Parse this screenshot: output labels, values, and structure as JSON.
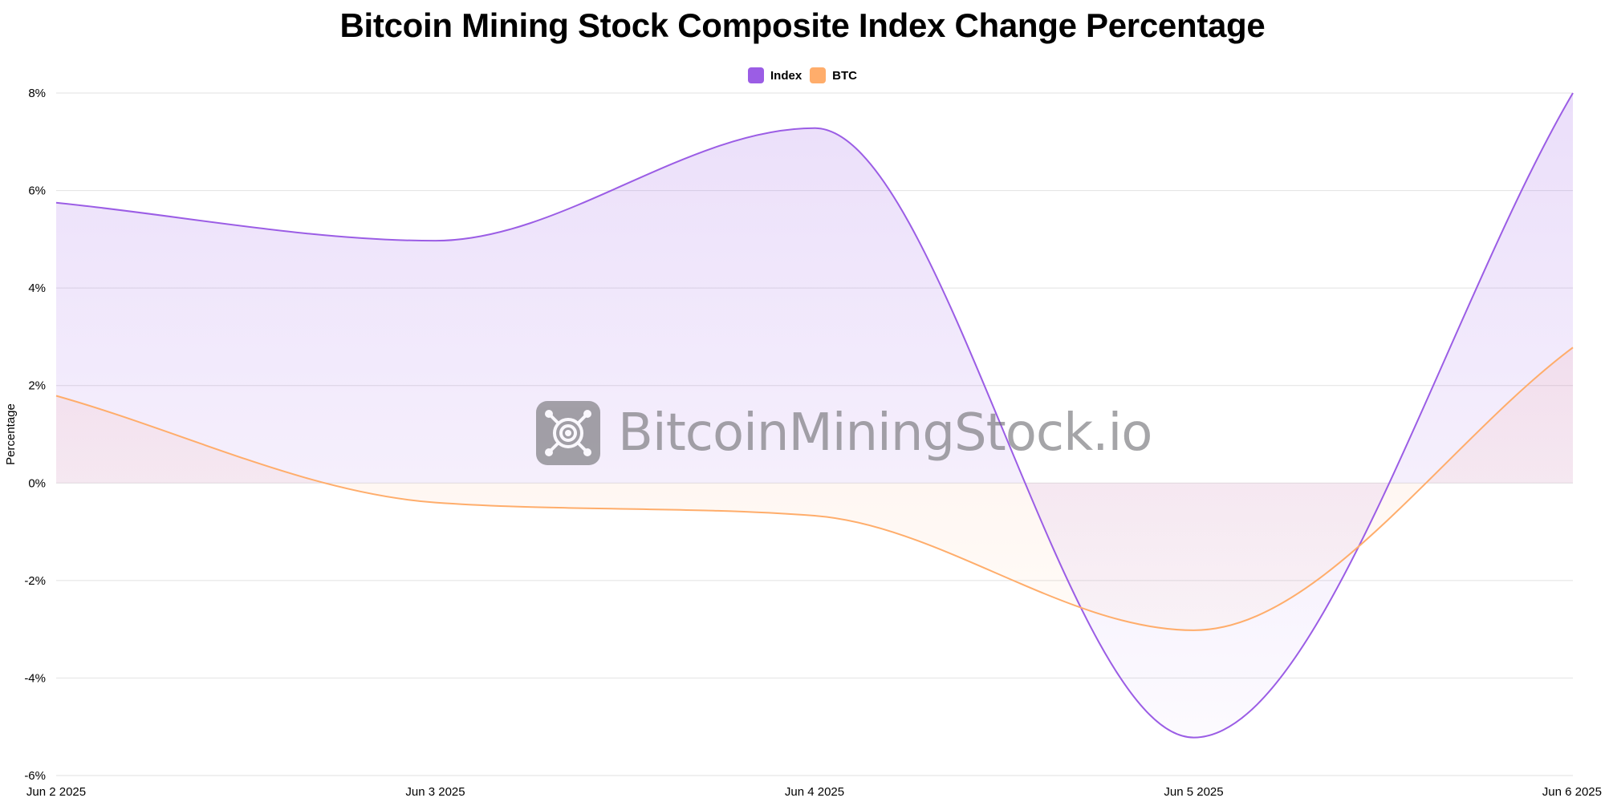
{
  "chart_data": {
    "type": "area",
    "title": "Bitcoin Mining Stock Composite Index Change Percentage",
    "xlabel": "",
    "ylabel": "Percentage",
    "x": [
      "Jun 2 2025",
      "Jun 3 2025",
      "Jun 4 2025",
      "Jun 5 2025",
      "Jun 6 2025"
    ],
    "ylim": [
      -6,
      8
    ],
    "yticks": [
      8,
      6,
      4,
      2,
      0,
      -2,
      -4,
      -6
    ],
    "ytick_labels": [
      "8%",
      "6%",
      "4%",
      "2%",
      "0%",
      "-2%",
      "-4%",
      "-6%"
    ],
    "grid": true,
    "legend_position": "top-center",
    "series": [
      {
        "name": "Index",
        "color": "#9b5de5",
        "values": [
          5.75,
          4.97,
          7.28,
          -5.22,
          8.0
        ]
      },
      {
        "name": "BTC",
        "color": "#ffad6b",
        "values": [
          1.79,
          -0.4,
          -0.67,
          -3.02,
          2.78
        ]
      }
    ]
  },
  "watermark": {
    "text": "BitcoinMiningStock.io",
    "icon": "bitcoin-mining-logo-icon"
  }
}
